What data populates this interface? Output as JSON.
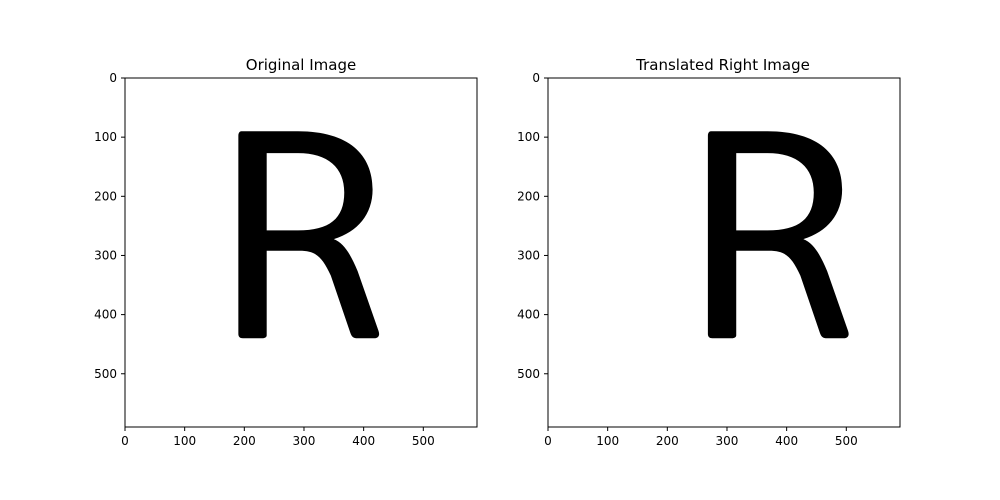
{
  "chart_data": [
    {
      "type": "image",
      "title": "Original Image",
      "xlim": [
        0,
        590
      ],
      "ylim": [
        590,
        0
      ],
      "xticks": [
        0,
        100,
        200,
        300,
        400,
        500
      ],
      "yticks": [
        0,
        100,
        200,
        300,
        400,
        500
      ],
      "content": {
        "glyph": "R",
        "color": "#000000",
        "background": "#ffffff",
        "x_extent": [
          190,
          425
        ],
        "y_extent": [
          90,
          440
        ]
      }
    },
    {
      "type": "image",
      "title": "Translated Right Image",
      "xlim": [
        0,
        590
      ],
      "ylim": [
        590,
        0
      ],
      "xticks": [
        0,
        100,
        200,
        300,
        400,
        500
      ],
      "yticks": [
        0,
        100,
        200,
        300,
        400,
        500
      ],
      "content": {
        "glyph": "R",
        "color": "#000000",
        "background": "#ffffff",
        "x_extent": [
          268,
          503
        ],
        "y_extent": [
          90,
          440
        ]
      }
    }
  ]
}
